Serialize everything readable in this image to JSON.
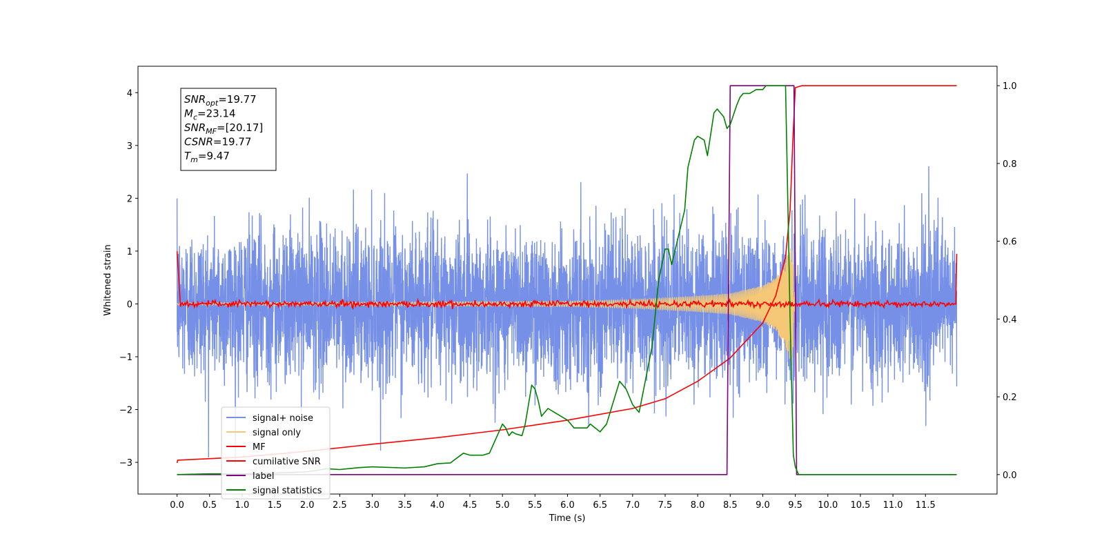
{
  "chart_data": {
    "type": "line",
    "title": "",
    "xlabel": "Time (s)",
    "ylabel": "Whitened strain",
    "y2label": "",
    "xlim": [
      -0.6,
      12.6
    ],
    "ylim": [
      -3.6,
      4.5
    ],
    "y2lim": [
      -0.05,
      1.05
    ],
    "x_ticks": [
      0.0,
      0.5,
      1.0,
      1.5,
      2.0,
      2.5,
      3.0,
      3.5,
      4.0,
      4.5,
      5.0,
      5.5,
      6.0,
      6.5,
      7.0,
      7.5,
      8.0,
      8.5,
      9.0,
      9.5,
      10.0,
      10.5,
      11.0,
      11.5
    ],
    "x_tick_labels": [
      "0.0",
      "0.5",
      "1.0",
      "1.5",
      "2.0",
      "2.5",
      "3.0",
      "3.5",
      "4.0",
      "4.5",
      "5.0",
      "5.5",
      "6.0",
      "6.5",
      "7.0",
      "7.5",
      "8.0",
      "8.5",
      "9.0",
      "9.5",
      "10.0",
      "10.5",
      "11.0",
      "11.5"
    ],
    "y_ticks": [
      -3,
      -2,
      -1,
      0,
      1,
      2,
      3,
      4
    ],
    "y_tick_labels": [
      "−3",
      "−2",
      "−1",
      "0",
      "1",
      "2",
      "3",
      "4"
    ],
    "y2_ticks": [
      0.0,
      0.2,
      0.4,
      0.6,
      0.8,
      1.0
    ],
    "y2_tick_labels": [
      "0.0",
      "0.2",
      "0.4",
      "0.6",
      "0.8",
      "1.0"
    ],
    "grid": false,
    "legend_position": "lower-left",
    "series": [
      {
        "name": "signal+ noise",
        "axis": "left",
        "color": "#7590e6",
        "kind": "dense noise band centred on 0, approximately within -2.3 to 2.3 (peaks near 2.9 around x=9.3)",
        "x_range": [
          0.0,
          11.98
        ],
        "noise_std": 0.72
      },
      {
        "name": "signal only",
        "axis": "left",
        "color": "#f5c878",
        "kind": "chirp with amplitude growing toward merger",
        "x": [
          0.0,
          6.0,
          7.0,
          8.0,
          8.5,
          9.0,
          9.2,
          9.35,
          9.45,
          9.5
        ],
        "amplitude": [
          0.02,
          0.05,
          0.08,
          0.15,
          0.2,
          0.35,
          0.5,
          0.8,
          1.2,
          0.0
        ]
      },
      {
        "name": "MF",
        "axis": "left",
        "color": "#ff0000",
        "kind": "near-zero output with small fluctuations",
        "x_range": [
          0.0,
          11.98
        ],
        "level": 0.0,
        "jitter": 0.05,
        "start_value": 1.0,
        "end_value": 0.95
      },
      {
        "name": "cumilative SNR",
        "axis": "right",
        "color": "#ff0000",
        "x": [
          0.0,
          0.01,
          1.0,
          2.0,
          3.0,
          4.0,
          5.0,
          6.0,
          7.0,
          7.5,
          8.0,
          8.5,
          9.0,
          9.2,
          9.35,
          9.42,
          9.46,
          9.5,
          9.6,
          11.98
        ],
        "y": [
          0.03,
          0.037,
          0.045,
          0.06,
          0.078,
          0.095,
          0.115,
          0.14,
          0.17,
          0.195,
          0.24,
          0.3,
          0.39,
          0.46,
          0.56,
          0.68,
          0.85,
          0.995,
          1.0,
          1.0
        ]
      },
      {
        "name": "label",
        "axis": "right",
        "color": "#800080",
        "x": [
          0.0,
          8.45,
          8.5,
          9.48,
          9.52,
          11.98
        ],
        "y": [
          0.0,
          0.0,
          1.0,
          1.0,
          0.0,
          0.0
        ]
      },
      {
        "name": "signal statistics",
        "axis": "right",
        "color": "#008000",
        "x": [
          0.0,
          0.5,
          1.0,
          1.5,
          2.0,
          2.3,
          2.5,
          2.8,
          3.0,
          3.5,
          3.8,
          4.0,
          4.2,
          4.4,
          4.5,
          4.7,
          4.8,
          5.0,
          5.05,
          5.1,
          5.15,
          5.2,
          5.3,
          5.35,
          5.4,
          5.45,
          5.5,
          5.55,
          5.6,
          5.65,
          5.7,
          5.8,
          6.0,
          6.1,
          6.3,
          6.35,
          6.5,
          6.6,
          6.8,
          6.9,
          7.0,
          7.1,
          7.3,
          7.4,
          7.5,
          7.55,
          7.6,
          7.7,
          7.8,
          7.85,
          7.95,
          8.0,
          8.1,
          8.15,
          8.25,
          8.3,
          8.4,
          8.45,
          8.5,
          8.6,
          8.65,
          8.7,
          8.8,
          8.9,
          9.0,
          9.05,
          9.2,
          9.35,
          9.42,
          9.47,
          9.5,
          9.55,
          9.6,
          11.98
        ],
        "y": [
          0.0,
          0.002,
          0.002,
          0.004,
          0.007,
          0.015,
          0.013,
          0.018,
          0.02,
          0.017,
          0.02,
          0.028,
          0.03,
          0.055,
          0.05,
          0.05,
          0.055,
          0.13,
          0.12,
          0.1,
          0.11,
          0.105,
          0.1,
          0.13,
          0.18,
          0.23,
          0.22,
          0.19,
          0.15,
          0.16,
          0.17,
          0.16,
          0.14,
          0.12,
          0.12,
          0.13,
          0.11,
          0.13,
          0.24,
          0.22,
          0.18,
          0.16,
          0.33,
          0.5,
          0.58,
          0.58,
          0.54,
          0.61,
          0.68,
          0.79,
          0.86,
          0.87,
          0.86,
          0.82,
          0.93,
          0.94,
          0.92,
          0.89,
          0.9,
          0.95,
          0.97,
          0.98,
          0.98,
          0.99,
          0.99,
          1.0,
          1.0,
          1.0,
          0.4,
          0.05,
          0.02,
          0.0,
          0.0,
          0.0
        ]
      }
    ],
    "annotations": [
      {
        "symbol": "SNR",
        "subscript": "opt",
        "text": "=19.77"
      },
      {
        "symbol": "M",
        "subscript": "c",
        "text": "=23.14"
      },
      {
        "symbol": "SNR",
        "subscript": "MF",
        "text": "=[20.17]"
      },
      {
        "symbol": "CSNR",
        "subscript": "",
        "text": "=19.77"
      },
      {
        "symbol": "T",
        "subscript": "m",
        "text": "=9.47"
      }
    ]
  }
}
